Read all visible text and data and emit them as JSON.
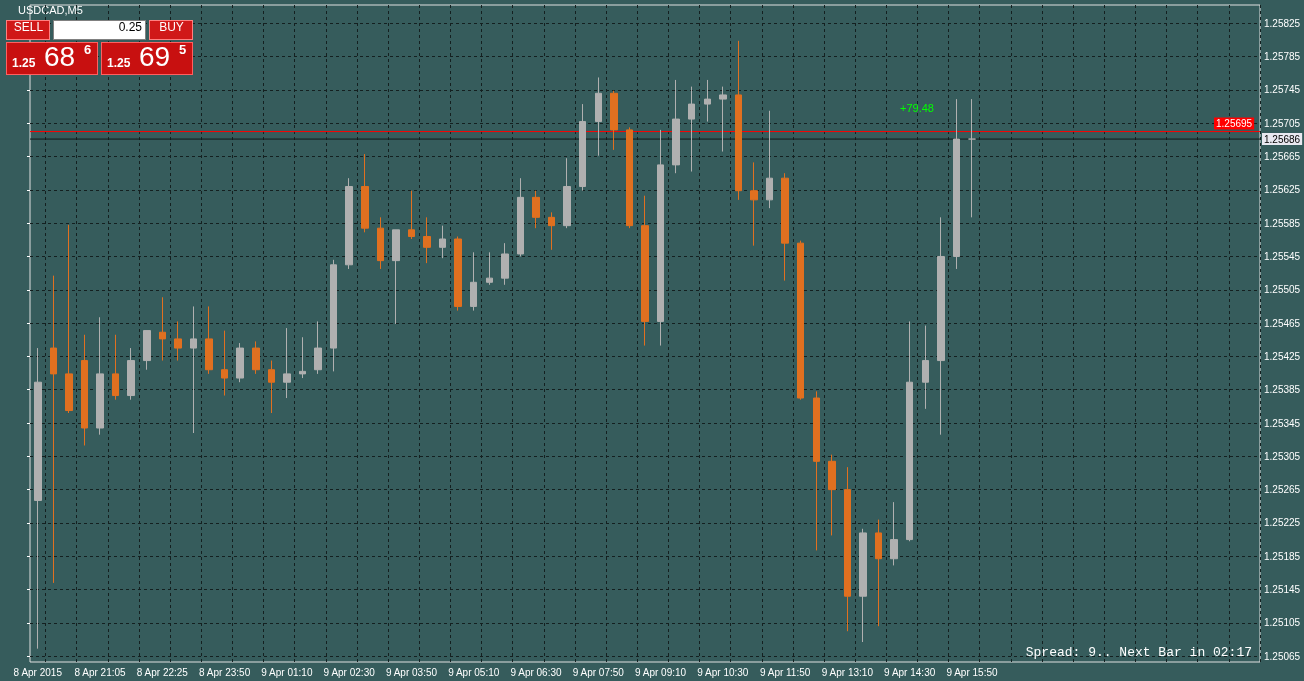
{
  "chart_data": {
    "type": "candlestick",
    "title": "USDCAD,M5",
    "categories": [
      "8 Apr 2015",
      null,
      null,
      null,
      "8 Apr 21:05",
      null,
      null,
      null,
      "8 Apr 22:25",
      null,
      null,
      null,
      "8 Apr 23:50",
      null,
      null,
      null,
      "9 Apr 01:10",
      null,
      null,
      null,
      "9 Apr 02:30",
      null,
      null,
      null,
      "9 Apr 03:50",
      null,
      null,
      null,
      "9 Apr 05:10",
      null,
      null,
      null,
      "9 Apr 06:30",
      null,
      null,
      null,
      "9 Apr 07:50",
      null,
      null,
      null,
      "9 Apr 09:10",
      null,
      null,
      null,
      "9 Apr 10:30",
      null,
      null,
      null,
      "9 Apr 11:50",
      null,
      null,
      null,
      "9 Apr 13:10",
      null,
      null,
      null,
      "9 Apr 14:30",
      null,
      null,
      null,
      "9 Apr 15:50",
      null,
      null,
      null,
      null,
      null,
      null,
      null,
      null,
      null,
      null,
      null,
      null,
      null,
      null,
      null,
      null,
      null,
      null
    ],
    "ohlc": [
      [
        1.25252,
        1.25435,
        1.25074,
        1.25394
      ],
      [
        1.25435,
        1.25522,
        1.25153,
        1.25404
      ],
      [
        1.25404,
        1.25583,
        1.25357,
        1.2536
      ],
      [
        1.2542,
        1.25451,
        1.25318,
        1.25339
      ],
      [
        1.25339,
        1.25472,
        1.25331,
        1.25404
      ],
      [
        1.25404,
        1.25451,
        1.25373,
        1.25378
      ],
      [
        1.25378,
        1.25435,
        1.25373,
        1.2542
      ],
      [
        1.2542,
        1.25456,
        1.25409,
        1.25456
      ],
      [
        1.25454,
        1.25496,
        1.2542,
        1.25446
      ],
      [
        1.25446,
        1.25467,
        1.2542,
        1.25435
      ],
      [
        1.25435,
        1.25485,
        1.25333,
        1.25446
      ],
      [
        1.25446,
        1.25485,
        1.25404,
        1.25409
      ],
      [
        1.25409,
        1.25456,
        1.25378,
        1.25399
      ],
      [
        1.25399,
        1.25441,
        1.25394,
        1.25435
      ],
      [
        1.25435,
        1.25443,
        1.25404,
        1.25409
      ],
      [
        1.25409,
        1.2542,
        1.25357,
        1.25394
      ],
      [
        1.25394,
        1.25459,
        1.25375,
        1.25404
      ],
      [
        1.25404,
        1.25448,
        1.25399,
        1.25407
      ],
      [
        1.25409,
        1.25467,
        1.25404,
        1.25435
      ],
      [
        1.25435,
        1.25541,
        1.25407,
        1.25535
      ],
      [
        1.25535,
        1.25639,
        1.2553,
        1.25629
      ],
      [
        1.25629,
        1.25668,
        1.25574,
        1.25579
      ],
      [
        1.25579,
        1.25592,
        1.2553,
        1.2554
      ],
      [
        1.2554,
        1.25577,
        1.25464,
        1.25577
      ],
      [
        1.25577,
        1.25624,
        1.25566,
        1.25569
      ],
      [
        1.25569,
        1.25592,
        1.25537,
        1.25556
      ],
      [
        1.25556,
        1.25582,
        1.25543,
        1.25566
      ],
      [
        1.25566,
        1.25569,
        1.2548,
        1.25485
      ],
      [
        1.25485,
        1.2555,
        1.2548,
        1.25514
      ],
      [
        1.25514,
        1.2555,
        1.25511,
        1.25519
      ],
      [
        1.25519,
        1.25561,
        1.25511,
        1.25548
      ],
      [
        1.25548,
        1.25639,
        1.25545,
        1.25616
      ],
      [
        1.25616,
        1.25624,
        1.25579,
        1.25592
      ],
      [
        1.25592,
        1.25598,
        1.25553,
        1.25582
      ],
      [
        1.25582,
        1.25663,
        1.25579,
        1.25629
      ],
      [
        1.25629,
        1.25728,
        1.25624,
        1.25707
      ],
      [
        1.25707,
        1.2576,
        1.25666,
        1.25741
      ],
      [
        1.25741,
        1.25744,
        1.25673,
        1.25697
      ],
      [
        1.25697,
        1.257,
        1.25579,
        1.25582
      ],
      [
        1.25582,
        1.25618,
        1.25438,
        1.25467
      ],
      [
        1.25467,
        1.25697,
        1.25438,
        1.25655
      ],
      [
        1.25655,
        1.25757,
        1.25645,
        1.2571
      ],
      [
        1.2571,
        1.25749,
        1.25647,
        1.25728
      ],
      [
        1.25728,
        1.25757,
        1.25707,
        1.25734
      ],
      [
        1.25734,
        1.25749,
        1.25671,
        1.25739
      ],
      [
        1.25739,
        1.25804,
        1.25613,
        1.25624
      ],
      [
        1.25624,
        1.25658,
        1.25558,
        1.25613
      ],
      [
        1.25613,
        1.2572,
        1.25603,
        1.25639
      ],
      [
        1.25639,
        1.25645,
        1.25516,
        1.25561
      ],
      [
        1.25561,
        1.25564,
        1.25373,
        1.25375
      ],
      [
        1.25375,
        1.25383,
        1.25192,
        1.25299
      ],
      [
        1.25299,
        1.25307,
        1.2521,
        1.25265
      ],
      [
        1.25265,
        1.25292,
        1.25095,
        1.25137
      ],
      [
        1.25137,
        1.25218,
        1.25082,
        1.25213
      ],
      [
        1.25213,
        1.25229,
        1.25101,
        1.25182
      ],
      [
        1.25182,
        1.2525,
        1.25174,
        1.25205
      ],
      [
        1.25205,
        1.25467,
        1.25203,
        1.25394
      ],
      [
        1.25394,
        1.25462,
        1.25362,
        1.2542
      ],
      [
        1.2542,
        1.25592,
        1.25331,
        1.25545
      ],
      [
        1.25545,
        1.25734,
        1.2553,
        1.25686
      ],
      [
        1.25686,
        1.25734,
        1.25592,
        1.25686
      ],
      null,
      null,
      null,
      null,
      null,
      null,
      null,
      null,
      null,
      null,
      null,
      null,
      null,
      null,
      null,
      null,
      null,
      null
    ],
    "colors": [
      "#b0b0b0",
      "#e07020",
      "#e07020",
      "#e07020",
      "#b0b0b0",
      "#e07020",
      "#b0b0b0",
      "#b0b0b0",
      "#e07020",
      "#e07020",
      "#b0b0b0",
      "#e07020",
      "#e07020",
      "#b0b0b0",
      "#e07020",
      "#e07020",
      "#b0b0b0",
      "#b0b0b0",
      "#b0b0b0",
      "#b0b0b0",
      "#b0b0b0",
      "#e07020",
      "#e07020",
      "#b0b0b0",
      "#e07020",
      "#e07020",
      "#b0b0b0",
      "#e07020",
      "#b0b0b0",
      "#b0b0b0",
      "#b0b0b0",
      "#b0b0b0",
      "#e07020",
      "#e07020",
      "#b0b0b0",
      "#b0b0b0",
      "#b0b0b0",
      "#e07020",
      "#e07020",
      "#e07020",
      "#b0b0b0",
      "#b0b0b0",
      "#b0b0b0",
      "#b0b0b0",
      "#b0b0b0",
      "#e07020",
      "#e07020",
      "#b0b0b0",
      "#e07020",
      "#e07020",
      "#e07020",
      "#e07020",
      "#e07020",
      "#b0b0b0",
      "#e07020",
      "#b0b0b0",
      "#b0b0b0",
      "#b0b0b0",
      "#b0b0b0",
      "#b0b0b0",
      "#b0b0b0",
      null,
      null,
      null,
      null,
      null,
      null,
      null,
      null,
      null,
      null,
      null,
      null,
      null,
      null,
      null,
      null,
      null,
      null
    ],
    "ylim": [
      1.25058,
      1.25847
    ],
    "yticks": [
      1.25065,
      1.25105,
      1.25145,
      1.25185,
      1.25225,
      1.25265,
      1.25305,
      1.25345,
      1.25385,
      1.25425,
      1.25465,
      1.25505,
      1.25545,
      1.25585,
      1.25625,
      1.25665,
      1.25705,
      1.25745,
      1.25785,
      1.25825
    ],
    "grid": true,
    "ref_lines": [
      {
        "axis": "y",
        "value": 1.25695,
        "label": "1.25695",
        "color": "#ff0000"
      },
      {
        "axis": "y",
        "value": 1.25686,
        "label": "1.25686",
        "color": "#101818"
      }
    ],
    "annotations": [
      "SELL",
      "0.25",
      "BUY",
      "1.25",
      "68",
      "6",
      "1.25",
      "69",
      "5",
      "+79.48",
      "Spread: 9.. Next Bar in 02:17"
    ]
  }
}
